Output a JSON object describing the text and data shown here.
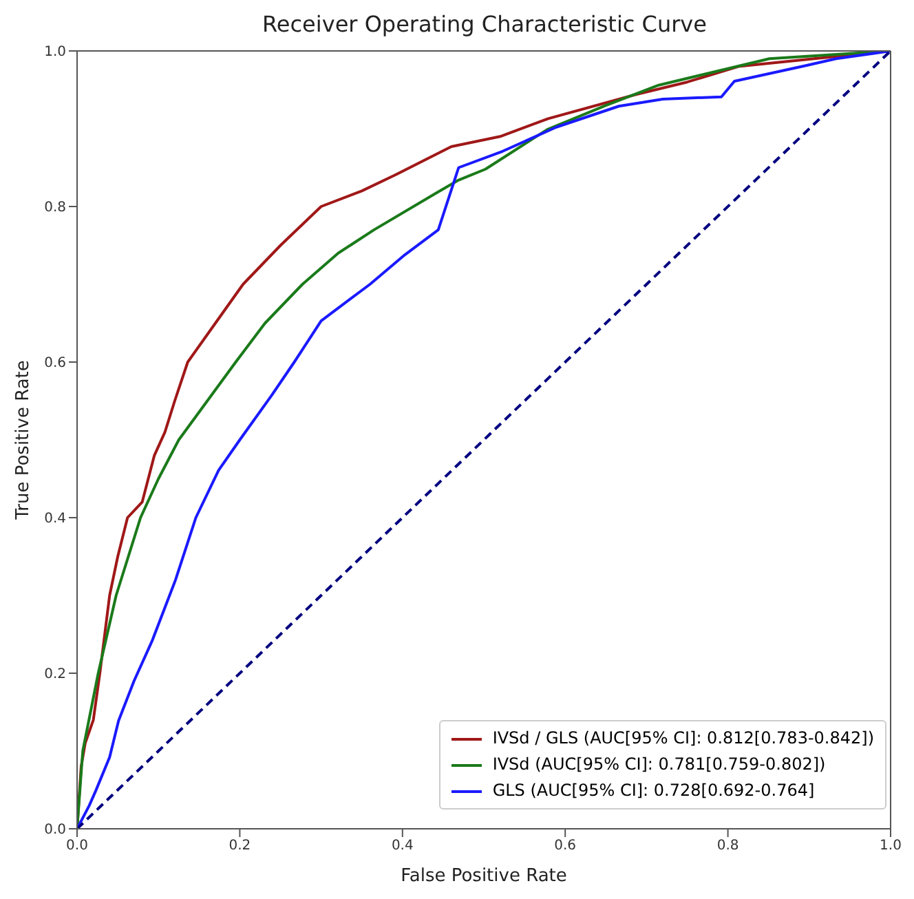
{
  "chart_data": {
    "type": "line",
    "title": "Receiver Operating Characteristic Curve",
    "xlabel": "False Positive Rate",
    "ylabel": "True Positive Rate",
    "xlim": [
      0,
      1
    ],
    "ylim": [
      0,
      1
    ],
    "xticks": [
      {
        "value": 0,
        "label": "0.0"
      },
      {
        "value": 0.2,
        "label": "0.2"
      },
      {
        "value": 0.4,
        "label": "0.4"
      },
      {
        "value": 0.6,
        "label": "0.6"
      },
      {
        "value": 0.8,
        "label": "0.8"
      },
      {
        "value": 1,
        "label": "1.0"
      }
    ],
    "yticks": [
      {
        "value": 0,
        "label": "0.0"
      },
      {
        "value": 0.2,
        "label": "0.2"
      },
      {
        "value": 0.4,
        "label": "0.4"
      },
      {
        "value": 0.6,
        "label": "0.6"
      },
      {
        "value": 0.8,
        "label": "0.8"
      },
      {
        "value": 1,
        "label": "1.0"
      }
    ],
    "legend": "bottom right",
    "marker": "none",
    "series": [
      {
        "name": "IVSd / GLS (AUC[95% CI]: 0.812[0.783-0.842])",
        "color": "#a01818",
        "line_style": "solid",
        "x": [
          0,
          0.005,
          0.01,
          0.02,
          0.028,
          0.04,
          0.05,
          0.062,
          0.08,
          0.095,
          0.108,
          0.12,
          0.136,
          0.17,
          0.204,
          0.25,
          0.3,
          0.35,
          0.39,
          0.46,
          0.52,
          0.579,
          0.687,
          0.75,
          0.813,
          0.906,
          1
        ],
        "values": [
          0,
          0.08,
          0.11,
          0.14,
          0.2,
          0.3,
          0.35,
          0.4,
          0.42,
          0.48,
          0.51,
          0.55,
          0.6,
          0.65,
          0.7,
          0.75,
          0.8,
          0.82,
          0.84,
          0.877,
          0.89,
          0.913,
          0.944,
          0.96,
          0.98,
          0.99,
          1
        ]
      },
      {
        "name": "IVSd (AUC[95% CI]: 0.781[0.759-0.802])",
        "color": "#1a7a1a",
        "line_style": "solid",
        "x": [
          0,
          0.007,
          0.026,
          0.048,
          0.078,
          0.1,
          0.125,
          0.16,
          0.195,
          0.231,
          0.277,
          0.321,
          0.365,
          0.441,
          0.469,
          0.502,
          0.578,
          0.65,
          0.715,
          0.851,
          1
        ],
        "values": [
          0,
          0.1,
          0.2,
          0.3,
          0.4,
          0.45,
          0.5,
          0.55,
          0.6,
          0.65,
          0.7,
          0.74,
          0.77,
          0.817,
          0.834,
          0.848,
          0.899,
          0.93,
          0.956,
          0.99,
          1
        ]
      },
      {
        "name": "GLS (AUC[95% CI]: 0.728[0.692-0.764]",
        "color": "#1a1aff",
        "line_style": "solid",
        "x": [
          0,
          0.015,
          0.023,
          0.04,
          0.051,
          0.07,
          0.092,
          0.121,
          0.146,
          0.174,
          0.2,
          0.239,
          0.267,
          0.3,
          0.36,
          0.403,
          0.444,
          0.469,
          0.523,
          0.589,
          0.666,
          0.72,
          0.792,
          0.808,
          0.895,
          0.933,
          1
        ],
        "values": [
          0,
          0.03,
          0.049,
          0.092,
          0.139,
          0.19,
          0.241,
          0.32,
          0.4,
          0.461,
          0.5,
          0.557,
          0.6,
          0.653,
          0.7,
          0.738,
          0.77,
          0.85,
          0.871,
          0.902,
          0.929,
          0.938,
          0.941,
          0.961,
          0.981,
          0.99,
          1
        ]
      },
      {
        "color": "#000080",
        "line_style": "dashed",
        "x": [
          0,
          1
        ],
        "values": [
          0,
          1
        ]
      }
    ]
  }
}
